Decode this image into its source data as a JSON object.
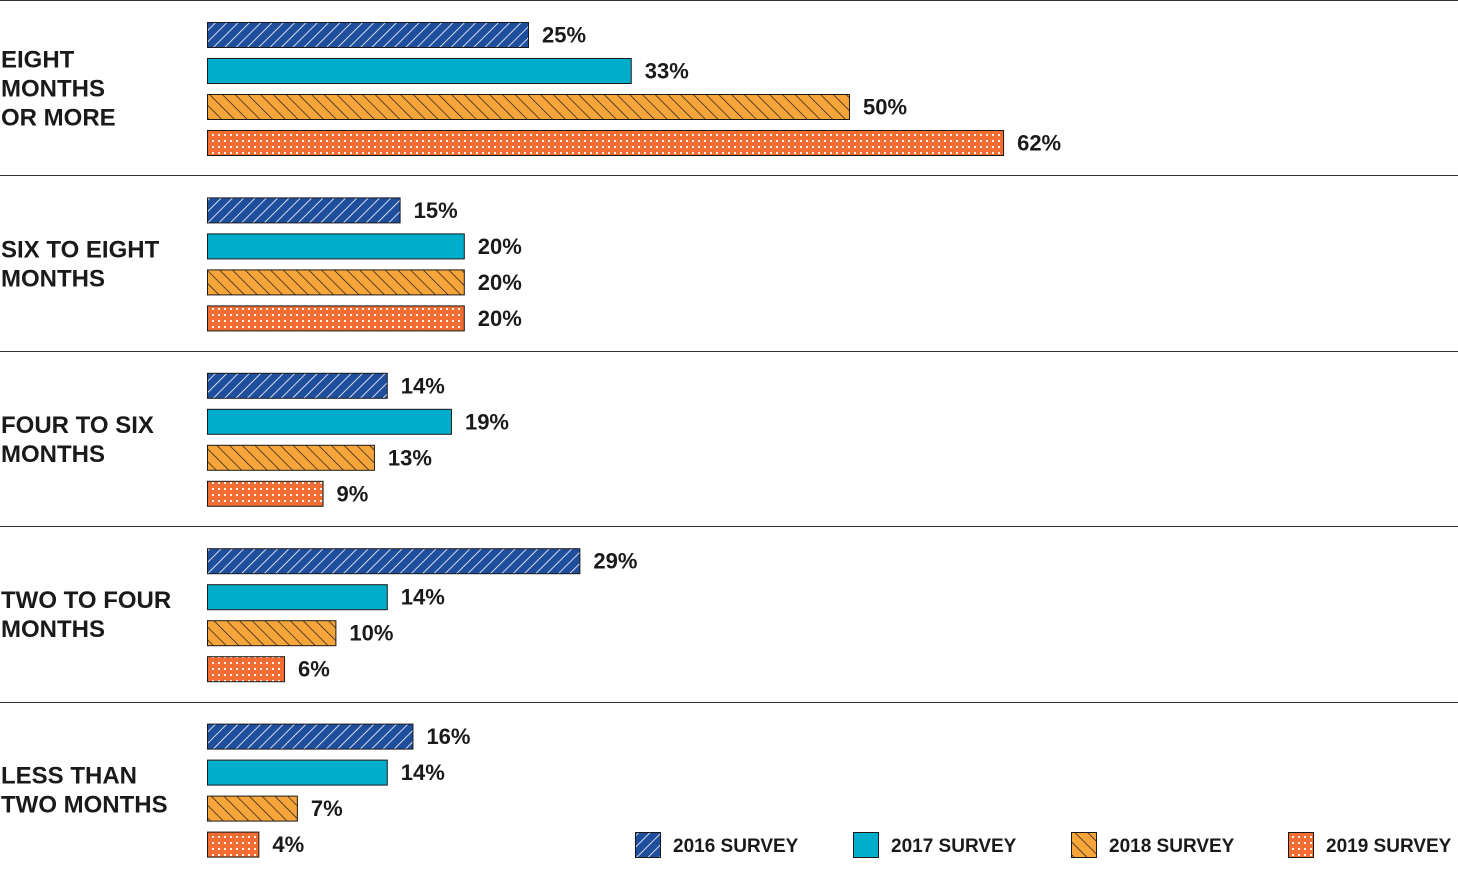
{
  "chart_data": {
    "type": "bar",
    "orientation": "horizontal",
    "categories": [
      [
        "EIGHT",
        "MONTHS",
        "OR MORE"
      ],
      [
        "SIX TO EIGHT",
        "MONTHS"
      ],
      [
        "FOUR TO SIX",
        "MONTHS"
      ],
      [
        "TWO TO FOUR",
        "MONTHS"
      ],
      [
        "LESS THAN",
        "TWO MONTHS"
      ]
    ],
    "series": [
      {
        "name": "2016 SURVEY",
        "values": [
          25,
          15,
          14,
          29,
          16
        ],
        "color": "#1f4e9c",
        "pattern": "forward-hatch"
      },
      {
        "name": "2017 SURVEY",
        "values": [
          33,
          20,
          19,
          14,
          14
        ],
        "color": "#00aecb",
        "pattern": "solid"
      },
      {
        "name": "2018 SURVEY",
        "values": [
          50,
          20,
          13,
          10,
          7
        ],
        "color": "#f6a53a",
        "pattern": "back-hatch"
      },
      {
        "name": "2019 SURVEY",
        "values": [
          62,
          20,
          9,
          6,
          4
        ],
        "color": "#f36c32",
        "pattern": "dots"
      }
    ],
    "value_suffix": "%",
    "legend_position": "bottom-right",
    "grid": false
  }
}
